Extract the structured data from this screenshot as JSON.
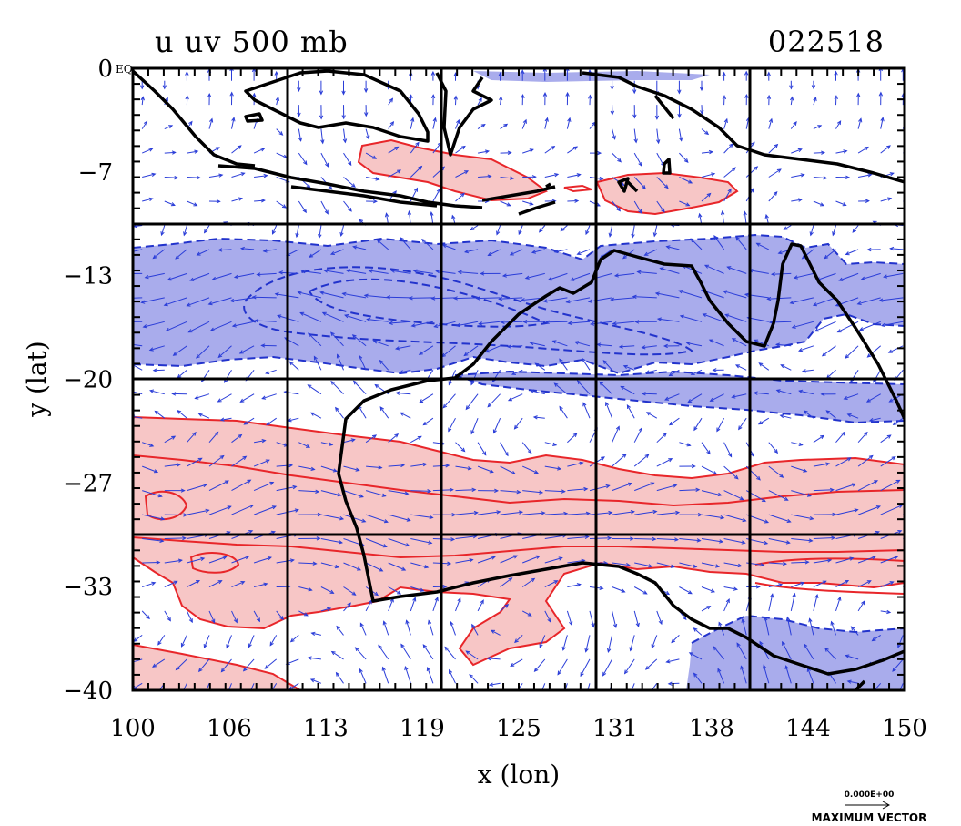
{
  "chart_data": {
    "type": "contour_vector_map",
    "title_left": "u uv 500 mb",
    "title_right": "022518",
    "xlabel": "x (lon)",
    "ylabel": "y (lat)",
    "x_ticks": [
      "100",
      "106",
      "113",
      "119",
      "125",
      "131",
      "138",
      "144",
      "150"
    ],
    "y_ticks": [
      "0",
      "-7",
      "-13",
      "-20",
      "-27",
      "-33",
      "-40"
    ],
    "y_tick_suffix": "EQ",
    "xlim": [
      100,
      150
    ],
    "ylim": [
      -40,
      0
    ],
    "grid_lon": [
      110,
      120,
      130,
      140
    ],
    "grid_lat": [
      -10,
      -20,
      -30
    ],
    "legend_value": "0.000E+00",
    "legend_caption": "MAXIMUM VECTOR",
    "colors": {
      "positive_fill": "#f7c6c6",
      "positive_line": "#e8262a",
      "negative_fill": "#a9acec",
      "negative_line": "#2233cc",
      "vector": "#2a3dd8",
      "coast": "#000000"
    }
  }
}
